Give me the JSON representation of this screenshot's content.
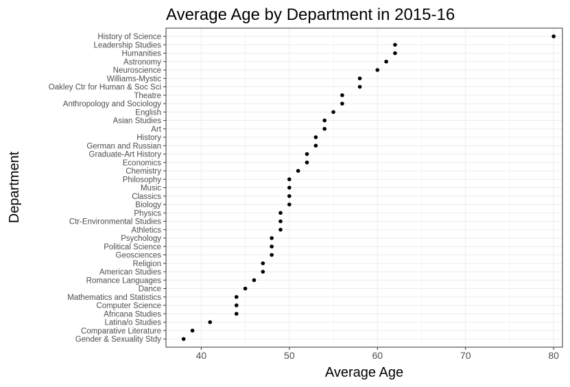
{
  "chart_data": {
    "type": "scatter",
    "title": "Average Age by Department in 2015-16",
    "xlabel": "Average Age",
    "ylabel": "Department",
    "xlim": [
      36,
      81
    ],
    "x_ticks": [
      40,
      50,
      60,
      70,
      80
    ],
    "grid": true,
    "legend": "none",
    "point_color": "#000000",
    "categories": [
      "History of Science",
      "Leadership Studies",
      "Humanities",
      "Astronomy",
      "Neuroscience",
      "Williams-Mystic",
      "Oakley Ctr for Human & Soc Sci",
      "Theatre",
      "Anthropology and Sociology",
      "English",
      "Asian Studies",
      "Art",
      "History",
      "German and Russian",
      "Graduate-Art History",
      "Economics",
      "Chemistry",
      "Philosophy",
      "Music",
      "Classics",
      "Biology",
      "Physics",
      "Ctr-Environmental Studies",
      "Athletics",
      "Psychology",
      "Political Science",
      "Geosciences",
      "Religion",
      "American Studies",
      "Romance Languages",
      "Dance",
      "Mathematics and Statistics",
      "Computer Science",
      "Africana Studies",
      "Latina/o Studies",
      "Comparative Literature",
      "Gender & Sexuality Stdy"
    ],
    "values": [
      80,
      62,
      62,
      61,
      60,
      58,
      58,
      56,
      56,
      55,
      54,
      54,
      53,
      53,
      52,
      52,
      51,
      50,
      50,
      50,
      50,
      49,
      49,
      49,
      48,
      48,
      48,
      47,
      47,
      46,
      45,
      44,
      44,
      44,
      41,
      39,
      38
    ]
  }
}
